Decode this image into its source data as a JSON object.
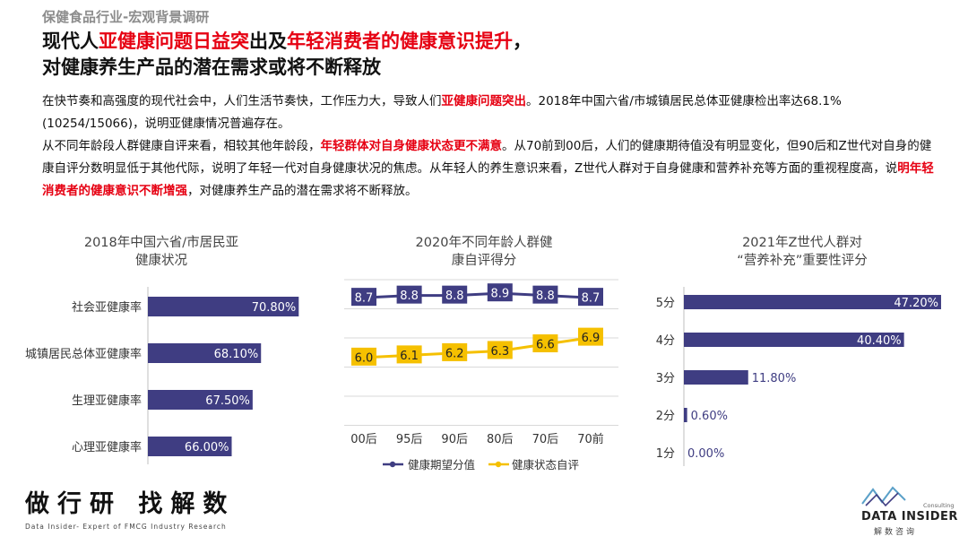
{
  "header": {
    "kicker": "保健食品行业-宏观背景调研",
    "line1": [
      {
        "text": "现代人",
        "red": false
      },
      {
        "text": "亚健康问题日益突",
        "red": true
      },
      {
        "text": "出及",
        "red": false
      },
      {
        "text": "年轻消费者的健康意识提升",
        "red": true
      },
      {
        "text": "，",
        "red": false
      }
    ],
    "line2": "对健康养生产品的潜在需求或将不断释放"
  },
  "body": {
    "p1_a": "在快节奏和高强度的现代社会中，人们生活节奏快，工作压力大，导致人们",
    "p1_hl": "亚健康问题突出",
    "p1_b": "。2018年中国六省/市城镇居民总体亚健康检出率达68.1%(10254/15066)，说明亚健康情况普遍存在。",
    "p2_a": "从不同年龄段人群健康自评来看，相较其他年龄段，",
    "p2_hl": "年轻群体对自身健康状态更不满意",
    "p2_b": "。从70前到00后，人们的健康期待值没有明显变化，但90后和Z世代对自身的健康自评分数明显低于其他代际，说明了年轻一代对自身健康状况的焦虑。从年轻人的养生意识来看，Z世代人群对于自身健康和营养补充等方面的重视程度高，说",
    "p2_hl2": "明年轻消费者的健康意识不断增强",
    "p2_c": "，对健康养生产品的潜在需求将不断释放。"
  },
  "colors": {
    "navy": "#3f3d82",
    "gold": "#f5c000",
    "red": "#e60012",
    "grid": "#d9d9d9"
  },
  "chart_data": [
    {
      "type": "bar",
      "orientation": "horizontal",
      "title": "2018年中国六省/市居民亚健康状况",
      "title_lines": [
        "2018年中国六省/市居民亚",
        "健康状况"
      ],
      "categories": [
        "社会亚健康率",
        "城镇居民总体亚健康率",
        "生理亚健康率",
        "心理亚健康率"
      ],
      "values": [
        70.8,
        68.1,
        67.5,
        66.0
      ],
      "labels": [
        "70.80%",
        "68.10%",
        "67.50%",
        "66.00%"
      ],
      "xlim": [
        60,
        72
      ]
    },
    {
      "type": "line",
      "title": "2020年不同年龄人群健康自评得分",
      "title_lines": [
        "2020年不同年龄人群健",
        "康自评得分"
      ],
      "categories": [
        "00后",
        "95后",
        "90后",
        "80后",
        "70后",
        "70前"
      ],
      "series": [
        {
          "name": "健康期望分值",
          "values": [
            8.7,
            8.8,
            8.8,
            8.9,
            8.8,
            8.7
          ],
          "labels": [
            "8.7",
            "8.8",
            "8.8",
            "8.9",
            "8.8",
            "8.7"
          ]
        },
        {
          "name": "健康状态自评",
          "values": [
            6.0,
            6.1,
            6.2,
            6.3,
            6.6,
            6.9
          ],
          "labels": [
            "6.0",
            "6.1",
            "6.2",
            "6.3",
            "6.6",
            "6.9"
          ]
        }
      ],
      "ylim": [
        3,
        10
      ]
    },
    {
      "type": "bar",
      "orientation": "horizontal",
      "title": "2021年Z世代人群对“营养补充”重要性评分",
      "title_lines": [
        "2021年Z世代人群对",
        "“营养补充”重要性评分"
      ],
      "categories": [
        "5分",
        "4分",
        "3分",
        "2分",
        "1分"
      ],
      "values": [
        47.2,
        40.4,
        11.8,
        0.6,
        0.0
      ],
      "labels": [
        "47.20%",
        "40.40%",
        "11.80%",
        "0.60%",
        "0.00%"
      ],
      "xlim": [
        0,
        50
      ]
    }
  ],
  "footer": {
    "slogan": "做行研 找解数",
    "sub": "Data Insider- Expert of FMCG Industry Research",
    "logo_name": "DATA INSIDER",
    "logo_tag": "Consulting",
    "logo_cn": "解数咨询"
  }
}
